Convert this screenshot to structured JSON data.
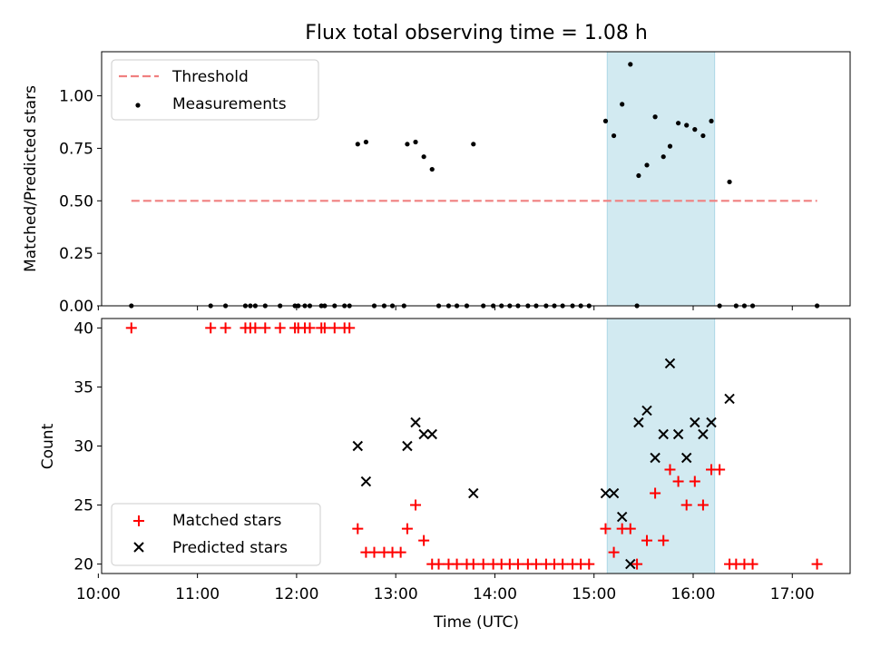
{
  "title": "Flux total observing time = 1.08 h",
  "colors": {
    "threshold": "#f08080",
    "measurements": "#000000",
    "matched": "#ff0000",
    "predicted": "#000000",
    "band": "#add8e6"
  },
  "chart_data": [
    {
      "type": "scatter",
      "panel": "top",
      "ylabel": "Matched/Predicted stars",
      "xlim": [
        "10:02",
        "17:35"
      ],
      "ylim": [
        0,
        1.21
      ],
      "yticks": [
        "0.00",
        "0.25",
        "0.50",
        "0.75",
        "1.00"
      ],
      "highlight_span": [
        "15:08",
        "16:13"
      ],
      "legend": {
        "position": "top-left",
        "entries": [
          "Threshold",
          "Measurements"
        ]
      },
      "threshold": {
        "name": "Threshold",
        "value": 0.5,
        "x_range": [
          "10:20",
          "17:15"
        ],
        "style": "dashed"
      },
      "series": [
        {
          "name": "Measurements",
          "points": [
            [
              "10:20",
              0.0
            ],
            [
              "11:08",
              0.0
            ],
            [
              "11:17",
              0.0
            ],
            [
              "11:29",
              0.0
            ],
            [
              "11:32",
              0.0
            ],
            [
              "11:35",
              0.0
            ],
            [
              "11:41",
              0.0
            ],
            [
              "11:50",
              0.0
            ],
            [
              "11:59",
              0.0
            ],
            [
              "12:01",
              0.0
            ],
            [
              "12:05",
              0.0
            ],
            [
              "12:08",
              0.0
            ],
            [
              "12:15",
              0.0
            ],
            [
              "12:17",
              0.0
            ],
            [
              "12:23",
              0.0
            ],
            [
              "12:29",
              0.0
            ],
            [
              "12:32",
              0.0
            ],
            [
              "12:37",
              0.77
            ],
            [
              "12:42",
              0.78
            ],
            [
              "12:47",
              0.0
            ],
            [
              "12:53",
              0.0
            ],
            [
              "12:58",
              0.0
            ],
            [
              "13:05",
              0.0
            ],
            [
              "13:07",
              0.77
            ],
            [
              "13:12",
              0.78
            ],
            [
              "13:17",
              0.71
            ],
            [
              "13:22",
              0.65
            ],
            [
              "13:26",
              0.0
            ],
            [
              "13:32",
              0.0
            ],
            [
              "13:37",
              0.0
            ],
            [
              "13:43",
              0.0
            ],
            [
              "13:47",
              0.77
            ],
            [
              "13:53",
              0.0
            ],
            [
              "13:59",
              0.0
            ],
            [
              "14:04",
              0.0
            ],
            [
              "14:09",
              0.0
            ],
            [
              "14:14",
              0.0
            ],
            [
              "14:20",
              0.0
            ],
            [
              "14:25",
              0.0
            ],
            [
              "14:31",
              0.0
            ],
            [
              "14:36",
              0.0
            ],
            [
              "14:41",
              0.0
            ],
            [
              "14:47",
              0.0
            ],
            [
              "14:52",
              0.0
            ],
            [
              "14:57",
              0.0
            ],
            [
              "15:07",
              0.88
            ],
            [
              "15:12",
              0.81
            ],
            [
              "15:17",
              0.96
            ],
            [
              "15:22",
              1.15
            ],
            [
              "15:26",
              0.0
            ],
            [
              "15:27",
              0.62
            ],
            [
              "15:32",
              0.67
            ],
            [
              "15:37",
              0.9
            ],
            [
              "15:42",
              0.71
            ],
            [
              "15:46",
              0.76
            ],
            [
              "15:51",
              0.87
            ],
            [
              "15:56",
              0.86
            ],
            [
              "16:01",
              0.84
            ],
            [
              "16:06",
              0.81
            ],
            [
              "16:11",
              0.88
            ],
            [
              "16:16",
              0.0
            ],
            [
              "16:22",
              0.59
            ],
            [
              "16:26",
              0.0
            ],
            [
              "16:31",
              0.0
            ],
            [
              "16:36",
              0.0
            ],
            [
              "17:15",
              0.0
            ]
          ]
        }
      ]
    },
    {
      "type": "scatter",
      "panel": "bottom",
      "xlabel": "Time (UTC)",
      "ylabel": "Count",
      "xlim": [
        "10:02",
        "17:35"
      ],
      "ylim": [
        19.2,
        40.8
      ],
      "xticks": [
        "10:00",
        "11:00",
        "12:00",
        "13:00",
        "14:00",
        "15:00",
        "16:00",
        "17:00"
      ],
      "yticks": [
        "20",
        "25",
        "30",
        "35",
        "40"
      ],
      "highlight_span": [
        "15:08",
        "16:13"
      ],
      "legend": {
        "position": "bottom-left",
        "entries": [
          "Matched stars",
          "Predicted stars"
        ]
      },
      "series": [
        {
          "name": "Matched stars",
          "marker": "plus",
          "points": [
            [
              "10:20",
              40
            ],
            [
              "11:08",
              40
            ],
            [
              "11:17",
              40
            ],
            [
              "11:29",
              40
            ],
            [
              "11:32",
              40
            ],
            [
              "11:35",
              40
            ],
            [
              "11:41",
              40
            ],
            [
              "11:50",
              40
            ],
            [
              "11:59",
              40
            ],
            [
              "12:01",
              40
            ],
            [
              "12:05",
              40
            ],
            [
              "12:08",
              40
            ],
            [
              "12:15",
              40
            ],
            [
              "12:17",
              40
            ],
            [
              "12:23",
              40
            ],
            [
              "12:29",
              40
            ],
            [
              "12:32",
              40
            ],
            [
              "12:37",
              23
            ],
            [
              "12:42",
              21
            ],
            [
              "12:47",
              21
            ],
            [
              "12:53",
              21
            ],
            [
              "12:58",
              21
            ],
            [
              "13:03",
              21
            ],
            [
              "13:07",
              23
            ],
            [
              "13:12",
              25
            ],
            [
              "13:17",
              22
            ],
            [
              "13:22",
              20
            ],
            [
              "13:26",
              20
            ],
            [
              "13:32",
              20
            ],
            [
              "13:37",
              20
            ],
            [
              "13:43",
              20
            ],
            [
              "13:47",
              20
            ],
            [
              "13:53",
              20
            ],
            [
              "13:59",
              20
            ],
            [
              "14:04",
              20
            ],
            [
              "14:09",
              20
            ],
            [
              "14:14",
              20
            ],
            [
              "14:20",
              20
            ],
            [
              "14:25",
              20
            ],
            [
              "14:31",
              20
            ],
            [
              "14:36",
              20
            ],
            [
              "14:41",
              20
            ],
            [
              "14:47",
              20
            ],
            [
              "14:52",
              20
            ],
            [
              "14:57",
              20
            ],
            [
              "15:07",
              23
            ],
            [
              "15:12",
              21
            ],
            [
              "15:17",
              23
            ],
            [
              "15:22",
              23
            ],
            [
              "15:26",
              20
            ],
            [
              "15:32",
              22
            ],
            [
              "15:37",
              26
            ],
            [
              "15:42",
              22
            ],
            [
              "15:46",
              28
            ],
            [
              "15:51",
              27
            ],
            [
              "15:56",
              25
            ],
            [
              "16:01",
              27
            ],
            [
              "16:06",
              25
            ],
            [
              "16:11",
              28
            ],
            [
              "16:16",
              28
            ],
            [
              "16:22",
              20
            ],
            [
              "16:26",
              20
            ],
            [
              "16:31",
              20
            ],
            [
              "16:36",
              20
            ],
            [
              "17:15",
              20
            ]
          ]
        },
        {
          "name": "Predicted stars",
          "marker": "x",
          "points": [
            [
              "12:37",
              30
            ],
            [
              "12:42",
              27
            ],
            [
              "13:07",
              30
            ],
            [
              "13:12",
              32
            ],
            [
              "13:17",
              31
            ],
            [
              "13:22",
              31
            ],
            [
              "13:47",
              26
            ],
            [
              "15:07",
              26
            ],
            [
              "15:12",
              26
            ],
            [
              "15:17",
              24
            ],
            [
              "15:22",
              20
            ],
            [
              "15:27",
              32
            ],
            [
              "15:32",
              33
            ],
            [
              "15:37",
              29
            ],
            [
              "15:42",
              31
            ],
            [
              "15:46",
              37
            ],
            [
              "15:51",
              31
            ],
            [
              "15:56",
              29
            ],
            [
              "16:01",
              32
            ],
            [
              "16:06",
              31
            ],
            [
              "16:11",
              32
            ],
            [
              "16:22",
              34
            ]
          ]
        }
      ]
    }
  ]
}
